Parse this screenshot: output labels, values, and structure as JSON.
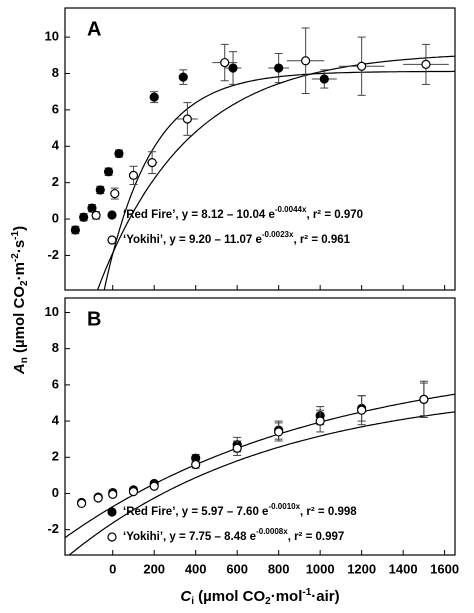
{
  "chart_data": [
    {
      "type": "scatter",
      "title": "A",
      "y_label": [
        "A",
        "n",
        " (µmol CO",
        "2",
        "·m",
        "-2",
        "·s",
        "-1",
        ")"
      ],
      "xlim": [
        -230,
        1650
      ],
      "ylim": [
        -3.9,
        11.6
      ],
      "xticks": [
        0,
        200,
        400,
        600,
        800,
        1000,
        1200,
        1400,
        1600
      ],
      "yticks": [
        -2,
        0,
        2,
        4,
        6,
        8,
        10
      ],
      "series": [
        {
          "name": "‘Red Fire’",
          "equation": ", y = 8.12 – 10.04 e",
          "exponent": "-0.0044x",
          "r2": ", r² = 0.970",
          "color": "#000000",
          "filled": true,
          "x": [
            -180,
            -140,
            -100,
            -60,
            -20,
            30,
            200,
            340,
            580,
            800,
            1020
          ],
          "values": [
            -0.6,
            0.1,
            0.6,
            1.6,
            2.6,
            3.6,
            6.7,
            7.8,
            8.3,
            8.3,
            7.7
          ],
          "yerr": [
            0.2,
            0.2,
            0.2,
            0.2,
            0.2,
            0.2,
            0.3,
            0.4,
            0.9,
            0.8,
            0.5
          ],
          "xerr": [
            10,
            10,
            10,
            10,
            10,
            15,
            20,
            20,
            40,
            50,
            60
          ],
          "fit": {
            "a": 8.12,
            "b": 10.04,
            "k": -0.0044
          }
        },
        {
          "name": "‘Yokihi’",
          "equation": ", y = 9.20 – 11.07 e",
          "exponent": "-0.0023x",
          "r2": ", r² = 0.961",
          "color": "#000000",
          "filled": false,
          "x": [
            -80,
            10,
            100,
            190,
            360,
            540,
            930,
            1200,
            1510
          ],
          "values": [
            0.2,
            1.4,
            2.4,
            3.1,
            5.5,
            8.6,
            8.7,
            8.4,
            8.5
          ],
          "yerr": [
            0.2,
            0.3,
            0.5,
            0.6,
            0.9,
            1.0,
            1.8,
            1.6,
            1.1
          ],
          "xerr": [
            10,
            15,
            20,
            25,
            50,
            60,
            90,
            110,
            110
          ],
          "fit": {
            "a": 9.2,
            "b": 11.07,
            "k": -0.0023
          }
        }
      ]
    },
    {
      "type": "scatter",
      "title": "B",
      "x_label": [
        "C",
        "i",
        " (µmol CO",
        "2",
        "·mol",
        "-1",
        "·air)"
      ],
      "xlim": [
        -230,
        1650
      ],
      "ylim": [
        -3.4,
        10.8
      ],
      "xticks": [
        0,
        200,
        400,
        600,
        800,
        1000,
        1200,
        1400,
        1600
      ],
      "yticks": [
        -2,
        0,
        2,
        4,
        6,
        8,
        10
      ],
      "series": [
        {
          "name": "‘Red Fire’",
          "equation": ", y = 5.97 – 7.60 e",
          "exponent": "-0.0010x",
          "r2": ", r² = 0.998",
          "color": "#000000",
          "filled": true,
          "x": [
            -150,
            -70,
            0,
            100,
            200,
            400,
            600,
            800,
            1000,
            1200,
            1500
          ],
          "values": [
            -0.5,
            -0.2,
            0.05,
            0.2,
            0.55,
            1.95,
            2.7,
            3.5,
            4.3,
            4.7,
            5.2
          ],
          "yerr": [
            0.1,
            0.1,
            0.1,
            0.1,
            0.1,
            0.2,
            0.4,
            0.5,
            0.5,
            0.7,
            0.9
          ],
          "fit": {
            "a": 5.97,
            "b": 7.6,
            "k": -0.001
          }
        },
        {
          "name": "‘Yokihi’",
          "equation": ", y = 7.75 – 8.48 e",
          "exponent": "-0.0008x",
          "r2": ", r² = 0.997",
          "color": "#000000",
          "filled": false,
          "x": [
            -150,
            -70,
            0,
            100,
            200,
            400,
            600,
            800,
            1000,
            1200,
            1500
          ],
          "values": [
            -0.55,
            -0.25,
            -0.05,
            0.1,
            0.4,
            1.6,
            2.5,
            3.4,
            4.0,
            4.6,
            5.2
          ],
          "yerr": [
            0.1,
            0.1,
            0.1,
            0.1,
            0.1,
            0.2,
            0.4,
            0.5,
            0.6,
            0.8,
            1.0
          ],
          "fit": {
            "a": 7.75,
            "b": 8.48,
            "k": -0.0008
          }
        }
      ]
    }
  ]
}
